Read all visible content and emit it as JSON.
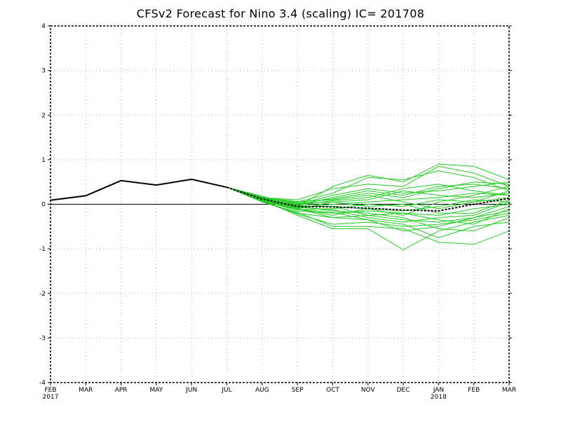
{
  "chart_data": {
    "type": "line",
    "title": "CFSv2 Forecast for Nino 3.4 (scaling)  IC= 201708",
    "xlabel": "",
    "ylabel": "",
    "ylim": [
      -4,
      4
    ],
    "yticks": [
      -4,
      -3,
      -2,
      -1,
      0,
      1,
      2,
      3,
      4
    ],
    "grid": true,
    "x": [
      "FEB 2017",
      "MAR",
      "APR",
      "MAY",
      "JUN",
      "JUL",
      "AUG",
      "SEP",
      "OCT",
      "NOV",
      "DEC",
      "JAN 2018",
      "FEB",
      "MAR"
    ],
    "x_tick_labels": [
      {
        "month": "FEB",
        "year": "2017"
      },
      {
        "month": "MAR",
        "year": ""
      },
      {
        "month": "APR",
        "year": ""
      },
      {
        "month": "MAY",
        "year": ""
      },
      {
        "month": "JUN",
        "year": ""
      },
      {
        "month": "JUL",
        "year": ""
      },
      {
        "month": "AUG",
        "year": ""
      },
      {
        "month": "SEP",
        "year": ""
      },
      {
        "month": "OCT",
        "year": ""
      },
      {
        "month": "NOV",
        "year": ""
      },
      {
        "month": "DEC",
        "year": ""
      },
      {
        "month": "JAN",
        "year": "2018"
      },
      {
        "month": "FEB",
        "year": ""
      },
      {
        "month": "MAR",
        "year": ""
      }
    ],
    "colors": {
      "observed": "#000000",
      "members": "#22cc22",
      "mean": "#000000",
      "grid": "#b0b0b0"
    },
    "observed": {
      "x_start": 0,
      "values": [
        0.09,
        0.19,
        0.53,
        0.43,
        0.56,
        0.38
      ]
    },
    "ensemble_mean": {
      "x_start": 5,
      "values": [
        0.38,
        0.12,
        -0.05,
        -0.06,
        -0.09,
        -0.13,
        -0.15,
        0.0,
        0.13
      ]
    },
    "members_start_index": 5,
    "members": [
      [
        0.38,
        0.1,
        -0.05,
        0.4,
        0.65,
        0.5,
        0.9,
        0.85,
        0.55
      ],
      [
        0.38,
        0.15,
        0.1,
        0.35,
        0.45,
        0.4,
        0.85,
        0.7,
        0.4
      ],
      [
        0.38,
        0.12,
        0.05,
        0.25,
        0.6,
        0.55,
        0.75,
        0.6,
        0.3
      ],
      [
        0.38,
        0.18,
        -0.02,
        0.15,
        0.3,
        0.2,
        0.4,
        0.45,
        0.35
      ],
      [
        0.38,
        0.14,
        0.0,
        0.2,
        0.35,
        0.25,
        0.3,
        0.4,
        0.5
      ],
      [
        0.38,
        0.1,
        -0.1,
        0.05,
        0.1,
        0.3,
        0.2,
        0.15,
        0.25
      ],
      [
        0.38,
        0.11,
        -0.08,
        0.0,
        0.05,
        0.1,
        0.15,
        0.25,
        0.2
      ],
      [
        0.38,
        0.08,
        -0.12,
        -0.1,
        0.0,
        -0.05,
        0.1,
        0.05,
        0.15
      ],
      [
        0.38,
        0.13,
        -0.05,
        -0.05,
        -0.1,
        -0.15,
        -0.05,
        0.1,
        0.05
      ],
      [
        0.38,
        0.09,
        -0.15,
        -0.2,
        -0.15,
        -0.2,
        -0.25,
        -0.1,
        0.0
      ],
      [
        0.38,
        0.07,
        -0.2,
        -0.3,
        -0.25,
        -0.35,
        -0.4,
        -0.3,
        -0.15
      ],
      [
        0.38,
        0.06,
        -0.22,
        -0.45,
        -0.4,
        -0.5,
        -0.45,
        -0.35,
        -0.2
      ],
      [
        0.38,
        0.1,
        -0.25,
        -0.55,
        -0.55,
        -1.02,
        -0.6,
        -0.4,
        -0.25
      ],
      [
        0.38,
        0.05,
        -0.18,
        -0.5,
        -0.5,
        -0.55,
        -0.85,
        -0.9,
        -0.6
      ],
      [
        0.38,
        0.12,
        -0.1,
        -0.3,
        -0.35,
        -0.45,
        -0.75,
        -0.5,
        -0.4
      ],
      [
        0.38,
        0.09,
        -0.05,
        -0.15,
        -0.2,
        -0.3,
        -0.55,
        -0.6,
        -0.3
      ],
      [
        0.38,
        0.11,
        -0.03,
        -0.05,
        -0.25,
        -0.2,
        -0.35,
        -0.45,
        -0.1
      ],
      [
        0.38,
        0.13,
        0.02,
        0.05,
        -0.05,
        0.0,
        -0.2,
        -0.2,
        0.1
      ],
      [
        0.38,
        0.16,
        0.06,
        0.1,
        0.2,
        0.05,
        -0.1,
        0.05,
        0.3
      ],
      [
        0.38,
        0.1,
        -0.07,
        -0.12,
        -0.3,
        -0.4,
        -0.3,
        -0.25,
        0.05
      ],
      [
        0.38,
        0.08,
        -0.1,
        -0.25,
        -0.1,
        -0.25,
        0.05,
        0.2,
        0.4
      ],
      [
        0.38,
        0.12,
        -0.02,
        0.08,
        0.15,
        0.35,
        0.45,
        0.3,
        0.2
      ],
      [
        0.38,
        0.09,
        -0.12,
        -0.18,
        -0.35,
        -0.6,
        -0.5,
        -0.3,
        -0.05
      ],
      [
        0.38,
        0.14,
        0.04,
        0.12,
        0.25,
        0.15,
        0.35,
        0.5,
        0.45
      ]
    ]
  }
}
